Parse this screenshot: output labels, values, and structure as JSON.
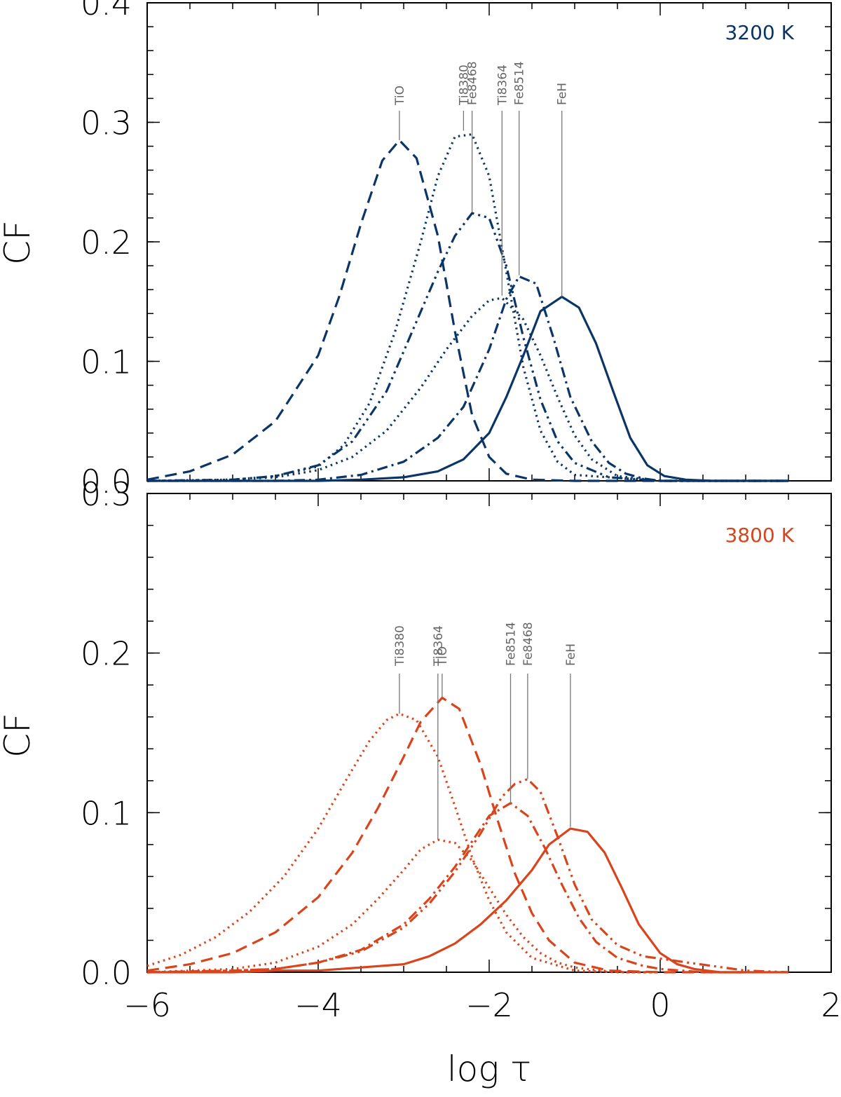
{
  "chart_data": [
    {
      "type": "line",
      "panel": "top",
      "annotation": "3200 K",
      "color": "#0b3566",
      "xlabel": "log τ",
      "ylabel": "CF",
      "xlim": [
        -6,
        2
      ],
      "ylim": [
        0,
        0.4
      ],
      "yticks": [
        "0.0",
        "0.1",
        "0.2",
        "0.3",
        "0.4"
      ],
      "series": [
        {
          "name": "TiO",
          "style": "dashed",
          "peak": [
            -3.05,
            0.285
          ],
          "x": [
            -6.0,
            -5.5,
            -5.0,
            -4.5,
            -4.0,
            -3.75,
            -3.5,
            -3.25,
            -3.05,
            -2.85,
            -2.6,
            -2.4,
            -2.2,
            -2.0,
            -1.8,
            -1.5,
            -1.0,
            0.0,
            1.5
          ],
          "y": [
            0.001,
            0.008,
            0.022,
            0.05,
            0.105,
            0.155,
            0.215,
            0.268,
            0.285,
            0.27,
            0.205,
            0.125,
            0.055,
            0.02,
            0.006,
            0.001,
            0.0,
            0.0,
            0.0
          ]
        },
        {
          "name": "Ti8380",
          "style": "dotted",
          "peak": [
            -2.3,
            0.293
          ],
          "x": [
            -6.0,
            -5.0,
            -4.5,
            -4.0,
            -3.7,
            -3.4,
            -3.1,
            -2.8,
            -2.6,
            -2.4,
            -2.2,
            -2.0,
            -1.8,
            -1.6,
            -1.4,
            -1.2,
            -1.0,
            0.0,
            1.5
          ],
          "y": [
            0.0,
            0.001,
            0.004,
            0.012,
            0.03,
            0.065,
            0.125,
            0.2,
            0.255,
            0.288,
            0.29,
            0.255,
            0.175,
            0.095,
            0.042,
            0.016,
            0.005,
            0.0,
            0.0
          ]
        },
        {
          "name": "Fe8468",
          "style": "dash-dot-dot",
          "peak": [
            -2.2,
            0.225
          ],
          "x": [
            -6.0,
            -5.0,
            -4.5,
            -4.0,
            -3.6,
            -3.2,
            -2.9,
            -2.6,
            -2.4,
            -2.2,
            -2.0,
            -1.8,
            -1.6,
            -1.4,
            -1.2,
            -1.0,
            -0.6,
            0.0,
            1.5
          ],
          "y": [
            0.0,
            0.001,
            0.004,
            0.013,
            0.033,
            0.075,
            0.125,
            0.175,
            0.205,
            0.224,
            0.22,
            0.18,
            0.12,
            0.068,
            0.033,
            0.015,
            0.003,
            0.0,
            0.0
          ]
        },
        {
          "name": "Ti8364",
          "style": "dotted",
          "peak": [
            -1.85,
            0.155
          ],
          "x": [
            -6.0,
            -5.0,
            -4.5,
            -4.0,
            -3.6,
            -3.2,
            -2.8,
            -2.5,
            -2.2,
            -2.0,
            -1.85,
            -1.6,
            -1.4,
            -1.2,
            -1.0,
            -0.8,
            -0.5,
            0.0,
            1.5
          ],
          "y": [
            0.0,
            0.001,
            0.003,
            0.009,
            0.02,
            0.042,
            0.078,
            0.11,
            0.138,
            0.151,
            0.153,
            0.135,
            0.105,
            0.07,
            0.038,
            0.018,
            0.004,
            0.0,
            0.0
          ]
        },
        {
          "name": "Fe8514",
          "style": "dash-dot",
          "peak": [
            -1.65,
            0.172
          ],
          "x": [
            -6.0,
            -4.5,
            -4.0,
            -3.5,
            -3.0,
            -2.6,
            -2.3,
            -2.0,
            -1.8,
            -1.65,
            -1.45,
            -1.25,
            -1.05,
            -0.8,
            -0.6,
            -0.4,
            -0.2,
            0.0,
            1.5
          ],
          "y": [
            0.0,
            0.0,
            0.001,
            0.005,
            0.016,
            0.036,
            0.062,
            0.11,
            0.152,
            0.171,
            0.165,
            0.12,
            0.07,
            0.033,
            0.015,
            0.006,
            0.002,
            0.0,
            0.0
          ]
        },
        {
          "name": "FeH",
          "style": "solid",
          "peak": [
            -1.15,
            0.154
          ],
          "x": [
            -6.0,
            -4.0,
            -3.5,
            -3.0,
            -2.6,
            -2.3,
            -2.0,
            -1.8,
            -1.6,
            -1.4,
            -1.15,
            -0.95,
            -0.75,
            -0.55,
            -0.35,
            -0.15,
            0.05,
            0.3,
            0.6,
            1.0,
            1.5
          ],
          "y": [
            0.0,
            0.0,
            0.001,
            0.003,
            0.008,
            0.018,
            0.04,
            0.07,
            0.105,
            0.142,
            0.154,
            0.145,
            0.115,
            0.075,
            0.036,
            0.013,
            0.004,
            0.001,
            0.0,
            0.0,
            0.0
          ]
        }
      ],
      "label_order": [
        "TiO",
        "Ti8380",
        "Fe8468",
        "Ti8364",
        "Fe8514",
        "FeH"
      ]
    },
    {
      "type": "line",
      "panel": "bottom",
      "annotation": "3800 K",
      "color": "#d9441c",
      "xlabel": "log τ",
      "ylabel": "CF",
      "xlim": [
        -6,
        2
      ],
      "ylim": [
        0,
        0.3
      ],
      "xticks": [
        "−6",
        "−4",
        "−2",
        "0",
        "2"
      ],
      "yticks": [
        "0.0",
        "0.1",
        "0.2",
        "0.3"
      ],
      "series": [
        {
          "name": "Ti8380",
          "style": "dotted",
          "peak": [
            -3.05,
            0.162
          ],
          "x": [
            -6.0,
            -5.6,
            -5.2,
            -4.8,
            -4.4,
            -4.0,
            -3.7,
            -3.4,
            -3.2,
            -3.05,
            -2.85,
            -2.6,
            -2.4,
            -2.2,
            -2.0,
            -1.8,
            -1.5,
            -1.0,
            -0.5,
            0.0
          ],
          "y": [
            0.004,
            0.011,
            0.022,
            0.038,
            0.06,
            0.09,
            0.118,
            0.145,
            0.158,
            0.162,
            0.158,
            0.135,
            0.104,
            0.072,
            0.045,
            0.025,
            0.009,
            0.001,
            0.0,
            0.0
          ]
        },
        {
          "name": "TiO",
          "style": "dashed",
          "peak": [
            -2.55,
            0.172
          ],
          "x": [
            -6.0,
            -5.5,
            -5.0,
            -4.5,
            -4.0,
            -3.6,
            -3.3,
            -3.0,
            -2.8,
            -2.55,
            -2.35,
            -2.1,
            -1.9,
            -1.7,
            -1.5,
            -1.3,
            -1.0,
            -0.6,
            0.0,
            1.0
          ],
          "y": [
            0.001,
            0.005,
            0.012,
            0.025,
            0.047,
            0.075,
            0.103,
            0.135,
            0.157,
            0.172,
            0.165,
            0.13,
            0.095,
            0.062,
            0.037,
            0.02,
            0.006,
            0.001,
            0.0,
            0.0
          ]
        },
        {
          "name": "Ti8364",
          "style": "dotted",
          "peak": [
            -2.6,
            0.083
          ],
          "x": [
            -6.0,
            -5.0,
            -4.5,
            -4.0,
            -3.6,
            -3.3,
            -3.0,
            -2.8,
            -2.6,
            -2.4,
            -2.2,
            -2.0,
            -1.8,
            -1.6,
            -1.4,
            -1.2,
            -1.0,
            -0.7,
            -0.4,
            0.0
          ],
          "y": [
            0.0,
            0.002,
            0.006,
            0.016,
            0.03,
            0.046,
            0.064,
            0.077,
            0.083,
            0.081,
            0.07,
            0.053,
            0.036,
            0.022,
            0.012,
            0.006,
            0.003,
            0.001,
            0.0,
            0.0
          ]
        },
        {
          "name": "Fe8514",
          "style": "dash-dot",
          "peak": [
            -1.75,
            0.106
          ],
          "x": [
            -6.0,
            -5.0,
            -4.5,
            -4.0,
            -3.5,
            -3.0,
            -2.7,
            -2.4,
            -2.2,
            -2.0,
            -1.75,
            -1.55,
            -1.35,
            -1.15,
            -0.95,
            -0.75,
            -0.5,
            -0.2,
            0.0,
            0.5,
            1.0
          ],
          "y": [
            0.0,
            0.001,
            0.002,
            0.006,
            0.014,
            0.03,
            0.046,
            0.066,
            0.082,
            0.098,
            0.106,
            0.098,
            0.078,
            0.055,
            0.034,
            0.019,
            0.009,
            0.004,
            0.002,
            0.0,
            0.0
          ]
        },
        {
          "name": "Fe8468",
          "style": "dash-dot-dot",
          "peak": [
            -1.55,
            0.121
          ],
          "x": [
            -6.0,
            -5.0,
            -4.5,
            -4.0,
            -3.5,
            -3.0,
            -2.7,
            -2.4,
            -2.1,
            -1.85,
            -1.7,
            -1.55,
            -1.4,
            -1.2,
            -1.0,
            -0.8,
            -0.5,
            -0.2,
            0.2,
            0.6,
            1.0,
            1.5
          ],
          "y": [
            0.0,
            0.001,
            0.002,
            0.006,
            0.013,
            0.028,
            0.043,
            0.063,
            0.087,
            0.11,
            0.118,
            0.121,
            0.113,
            0.085,
            0.055,
            0.033,
            0.017,
            0.01,
            0.007,
            0.004,
            0.001,
            0.0
          ]
        },
        {
          "name": "FeH",
          "style": "solid",
          "peak": [
            -1.05,
            0.091
          ],
          "x": [
            -6.0,
            -5.0,
            -4.5,
            -4.0,
            -3.5,
            -3.0,
            -2.7,
            -2.4,
            -2.1,
            -1.8,
            -1.5,
            -1.3,
            -1.05,
            -0.85,
            -0.65,
            -0.45,
            -0.25,
            0.0,
            0.2,
            0.4,
            0.7,
            1.0,
            1.5
          ],
          "y": [
            0.0,
            0.0,
            0.001,
            0.001,
            0.003,
            0.005,
            0.01,
            0.018,
            0.03,
            0.045,
            0.064,
            0.08,
            0.09,
            0.088,
            0.075,
            0.053,
            0.03,
            0.012,
            0.005,
            0.002,
            0.0,
            0.0,
            0.0
          ]
        }
      ],
      "label_order": [
        "Ti8380",
        "TiO",
        "Ti8364",
        "Fe8514",
        "Fe8468",
        "FeH"
      ]
    }
  ]
}
